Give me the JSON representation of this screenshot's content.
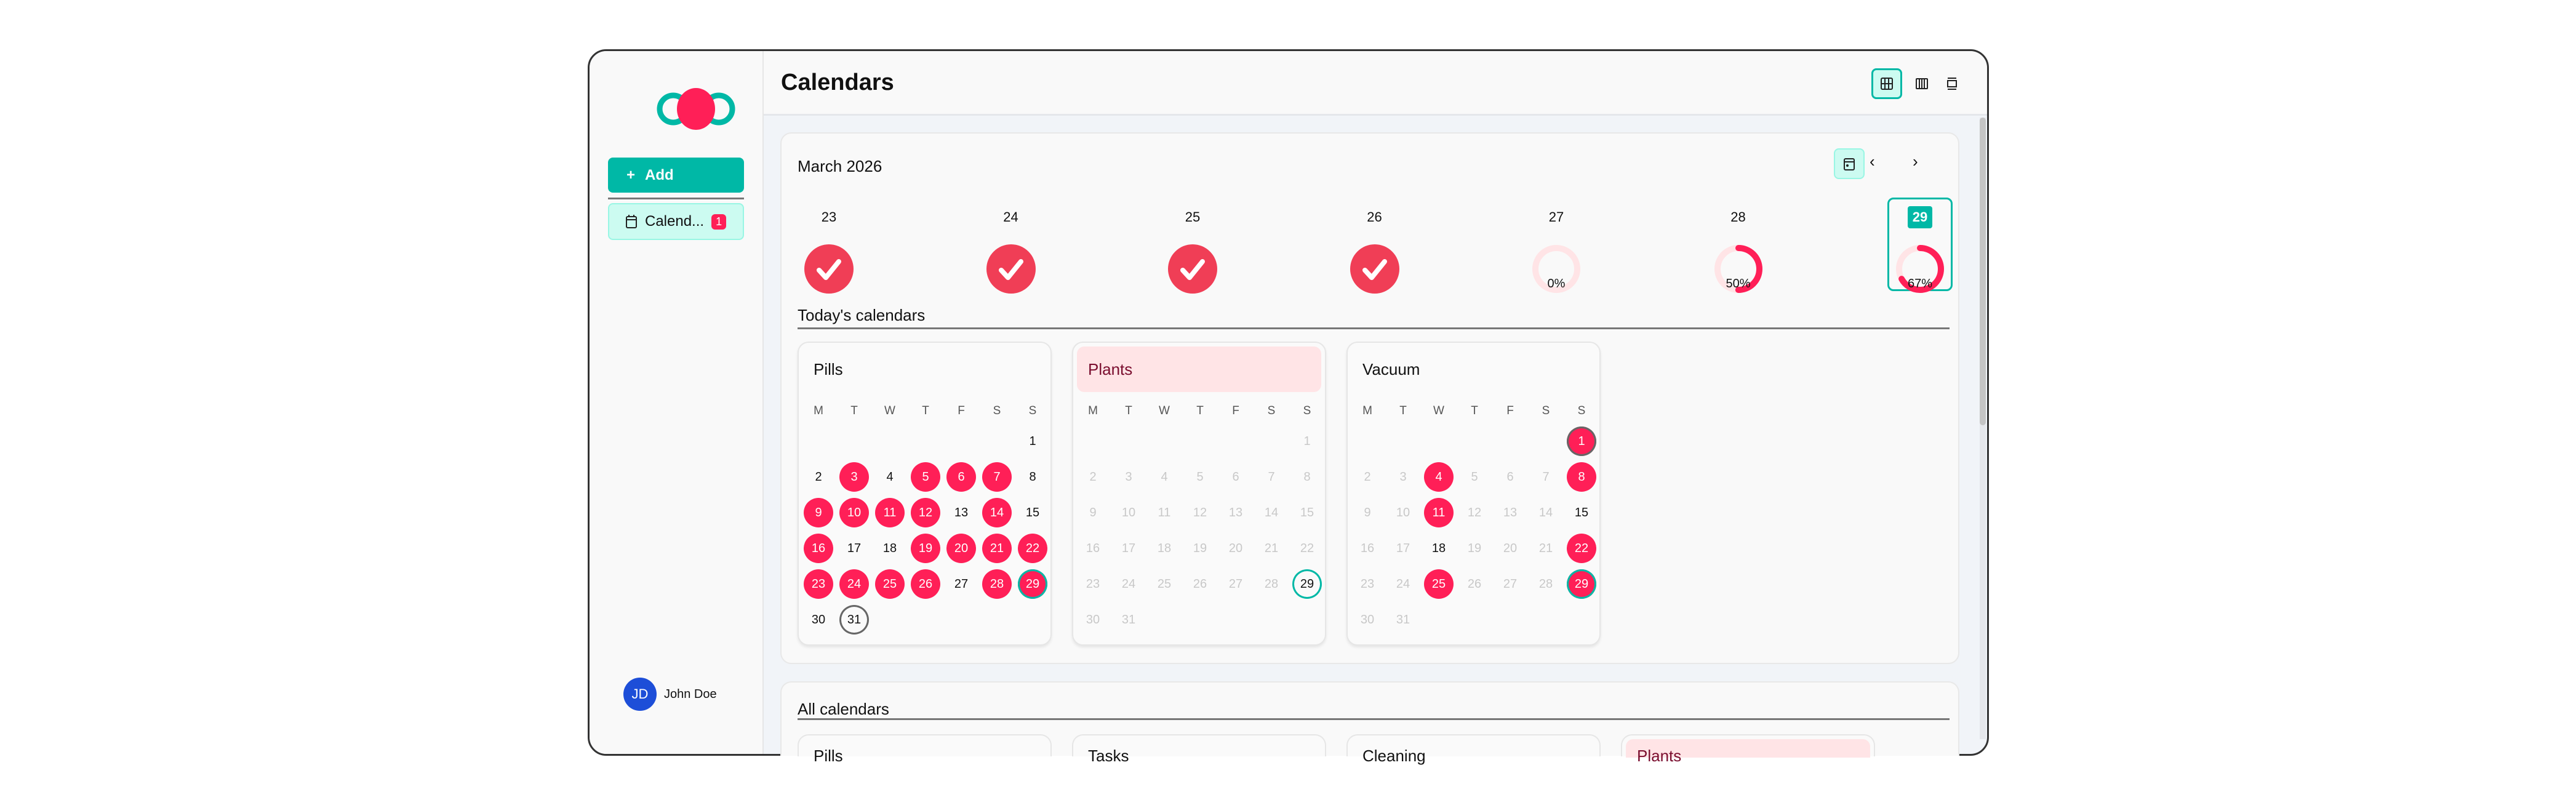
{
  "app": {
    "title": "Calendars"
  },
  "sidebar": {
    "add_label": "Add",
    "add_icon": "plus-icon",
    "nav": [
      {
        "label": "Calend...",
        "badge": "1",
        "icon": "calendar-icon"
      }
    ],
    "user": {
      "initials": "JD",
      "name": "John Doe"
    }
  },
  "header": {
    "views": [
      "grid-view",
      "columns-view",
      "single-view"
    ],
    "active_view": "grid-view"
  },
  "colors": {
    "accent": "#00b8a6",
    "pink": "#ff1f57",
    "check": "#f03e56",
    "light_pink": "#ffe4e6"
  },
  "overview": {
    "month_label": "March 2026",
    "days": [
      {
        "day": "23",
        "progress": 100
      },
      {
        "day": "24",
        "progress": 100
      },
      {
        "day": "25",
        "progress": 100
      },
      {
        "day": "26",
        "progress": 100
      },
      {
        "day": "27",
        "progress": 0,
        "label": "0%"
      },
      {
        "day": "28",
        "progress": 50,
        "label": "50%"
      },
      {
        "day": "29",
        "progress": 67,
        "label": "67%",
        "today": true
      }
    ]
  },
  "today_section": {
    "title": "Today's calendars"
  },
  "weekdays": [
    "M",
    "T",
    "W",
    "T",
    "F",
    "S",
    "S"
  ],
  "calendars": [
    {
      "name": "Pills",
      "highlight": false,
      "active": "all",
      "done": [
        3,
        5,
        6,
        7,
        9,
        10,
        11,
        12,
        14,
        16,
        19,
        20,
        21,
        22,
        23,
        24,
        25,
        26,
        28,
        29
      ],
      "ring": [
        31
      ]
    },
    {
      "name": "Plants",
      "highlight": true,
      "active": [],
      "done": [],
      "ring": []
    },
    {
      "name": "Vacuum",
      "highlight": false,
      "active": [
        15,
        18
      ],
      "done": [
        1,
        4,
        8,
        11,
        22,
        25,
        29
      ],
      "ring": [
        1
      ]
    }
  ],
  "today_day": 29,
  "all_section": {
    "title": "All calendars",
    "cards": [
      {
        "name": "Pills",
        "highlight": false
      },
      {
        "name": "Tasks",
        "highlight": false
      },
      {
        "name": "Cleaning",
        "highlight": false
      },
      {
        "name": "Plants",
        "highlight": true
      }
    ]
  }
}
